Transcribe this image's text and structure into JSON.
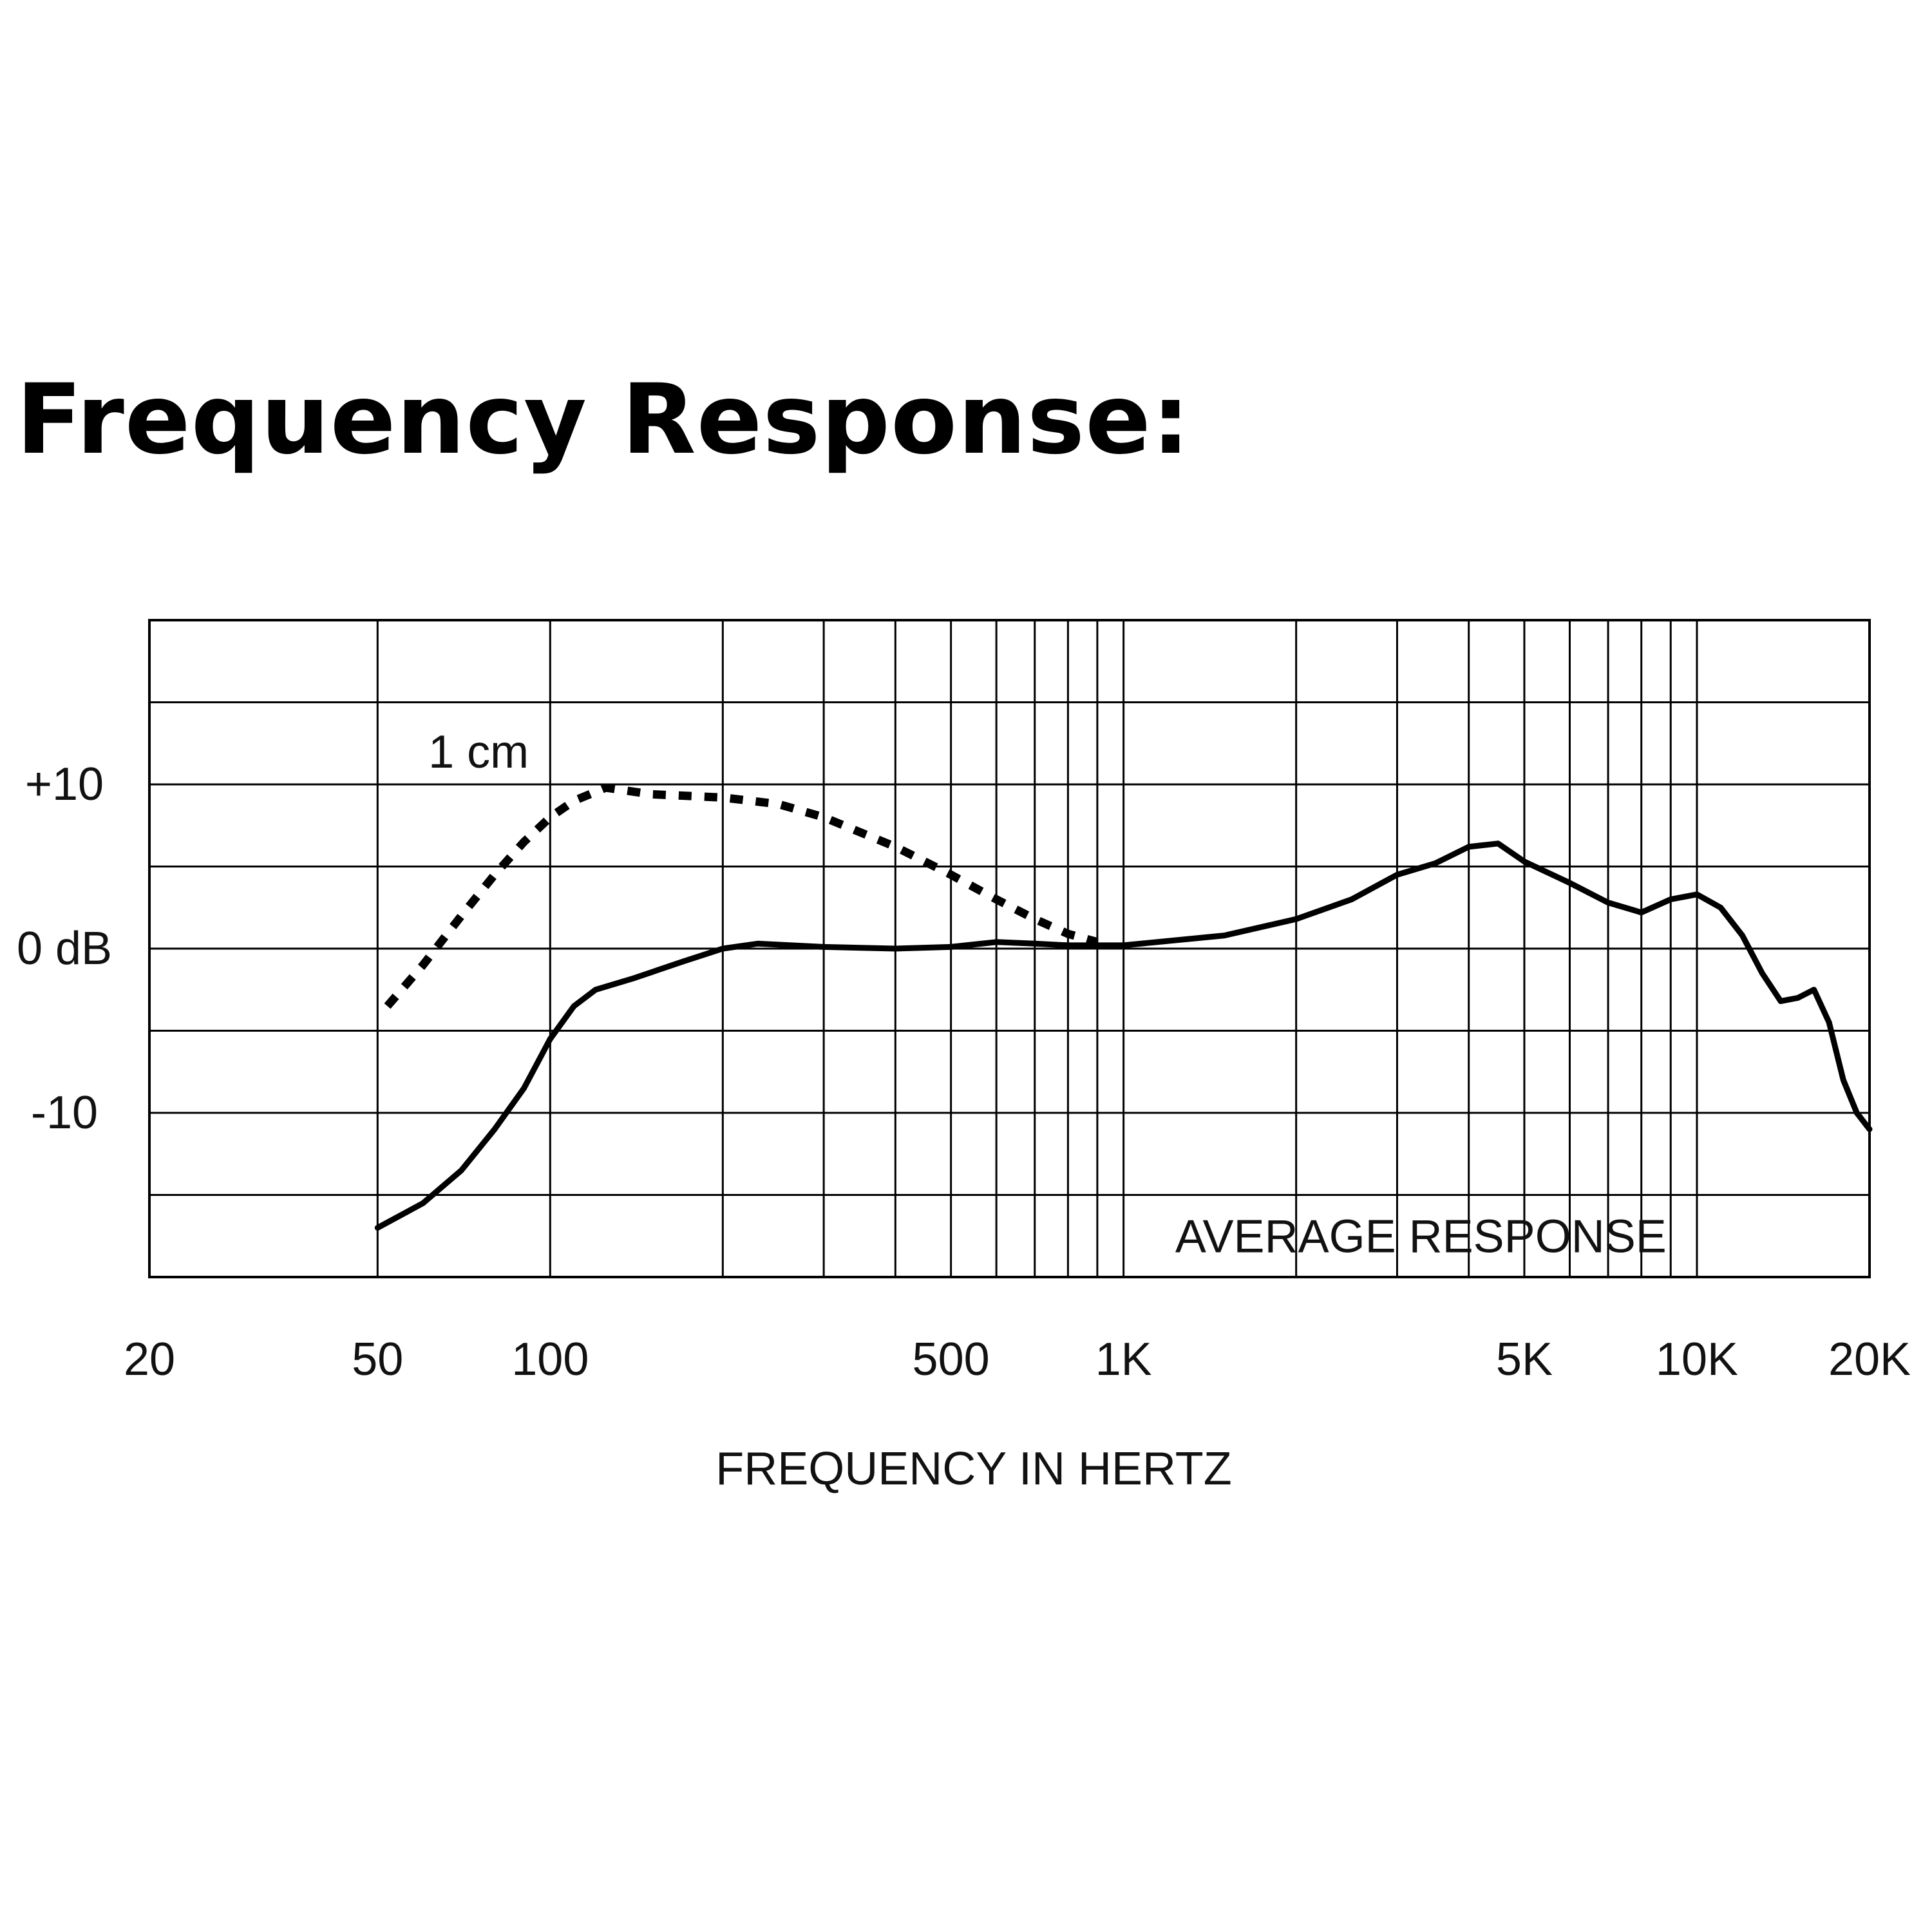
{
  "title": "Frequency Response:",
  "chart_data": {
    "type": "line",
    "title": "Frequency Response:",
    "xlabel": "FREQUENCY IN HERTZ",
    "ylabel": "",
    "xscale": "log",
    "xlim": [
      20,
      20000
    ],
    "ylim": [
      -20,
      20
    ],
    "grid": true,
    "x_ticks": [
      {
        "value": 20,
        "label": "20"
      },
      {
        "value": 50,
        "label": "50"
      },
      {
        "value": 100,
        "label": "100"
      },
      {
        "value": 500,
        "label": "500"
      },
      {
        "value": 1000,
        "label": "1K"
      },
      {
        "value": 5000,
        "label": "5K"
      },
      {
        "value": 10000,
        "label": "10K"
      },
      {
        "value": 20000,
        "label": "20K"
      }
    ],
    "x_gridlines": [
      20,
      50,
      100,
      200,
      300,
      400,
      500,
      600,
      700,
      800,
      900,
      1000,
      2000,
      3000,
      4000,
      5000,
      6000,
      7000,
      8000,
      9000,
      10000,
      20000
    ],
    "y_ticks": [
      {
        "value": 10,
        "label": "+10"
      },
      {
        "value": 0,
        "label": "0 dB"
      },
      {
        "value": -10,
        "label": "-10"
      }
    ],
    "y_gridlines": [
      -20,
      -15,
      -10,
      -5,
      0,
      5,
      10,
      15,
      20
    ],
    "annotations": [
      {
        "text": "AVERAGE RESPONSE",
        "x": 3300,
        "y": -17.5
      },
      {
        "text": "1 cm",
        "x": 75,
        "y": 12
      }
    ],
    "series": [
      {
        "name": "",
        "style": "solid",
        "points": [
          [
            50,
            -17
          ],
          [
            60,
            -15.5
          ],
          [
            70,
            -13.5
          ],
          [
            80,
            -11
          ],
          [
            90,
            -8.5
          ],
          [
            100,
            -5.5
          ],
          [
            110,
            -3.5
          ],
          [
            120,
            -2.5
          ],
          [
            140,
            -1.8
          ],
          [
            170,
            -0.8
          ],
          [
            200,
            0
          ],
          [
            230,
            0.3
          ],
          [
            300,
            0.1
          ],
          [
            400,
            0
          ],
          [
            500,
            0.1
          ],
          [
            600,
            0.4
          ],
          [
            700,
            0.3
          ],
          [
            800,
            0.2
          ],
          [
            1000,
            0.2
          ],
          [
            1500,
            0.8
          ],
          [
            2000,
            1.8
          ],
          [
            2500,
            3
          ],
          [
            3000,
            4.5
          ],
          [
            3500,
            5.2
          ],
          [
            4000,
            6.2
          ],
          [
            4500,
            6.4
          ],
          [
            5000,
            5.3
          ],
          [
            6000,
            4
          ],
          [
            7000,
            2.8
          ],
          [
            8000,
            2.2
          ],
          [
            9000,
            3
          ],
          [
            10000,
            3.3
          ],
          [
            11000,
            2.5
          ],
          [
            12000,
            0.8
          ],
          [
            13000,
            -1.5
          ],
          [
            14000,
            -3.2
          ],
          [
            15000,
            -3
          ],
          [
            16000,
            -2.5
          ],
          [
            17000,
            -4.5
          ],
          [
            18000,
            -8
          ],
          [
            19000,
            -10
          ],
          [
            20000,
            -11
          ]
        ]
      },
      {
        "name": "1 cm",
        "style": "dotted",
        "points": [
          [
            52,
            -3.5
          ],
          [
            60,
            -1
          ],
          [
            70,
            2
          ],
          [
            80,
            4.5
          ],
          [
            90,
            6.5
          ],
          [
            100,
            8
          ],
          [
            110,
            9
          ],
          [
            125,
            9.8
          ],
          [
            150,
            9.4
          ],
          [
            200,
            9.2
          ],
          [
            250,
            8.8
          ],
          [
            300,
            8
          ],
          [
            400,
            6.2
          ],
          [
            500,
            4.5
          ],
          [
            600,
            3
          ],
          [
            700,
            1.8
          ],
          [
            800,
            0.9
          ],
          [
            900,
            0.4
          ]
        ]
      }
    ]
  }
}
